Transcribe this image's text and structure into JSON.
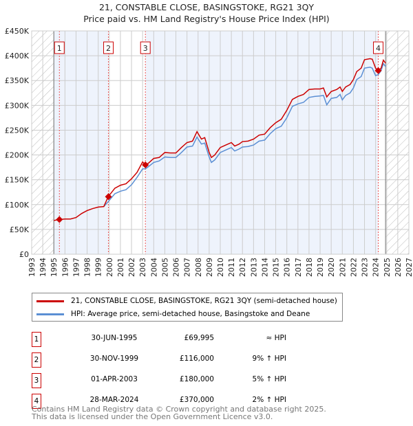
{
  "chart_data": {
    "type": "line",
    "title": "21, CONSTABLE CLOSE, BASINGSTOKE, RG21 3QY",
    "subtitle": "Price paid vs. HM Land Registry's House Price Index (HPI)",
    "xlim": [
      1993,
      2027
    ],
    "ylim": [
      0,
      450000
    ],
    "x_ticks": [
      "1993",
      "1994",
      "1995",
      "1996",
      "1997",
      "1998",
      "1999",
      "2000",
      "2001",
      "2002",
      "2003",
      "2004",
      "2005",
      "2006",
      "2007",
      "2008",
      "2009",
      "2010",
      "2011",
      "2012",
      "2013",
      "2014",
      "2015",
      "2016",
      "2017",
      "2018",
      "2019",
      "2020",
      "2021",
      "2022",
      "2023",
      "2024",
      "2025",
      "2026",
      "2027"
    ],
    "y_ticks": [
      "£0",
      "£50K",
      "£100K",
      "£150K",
      "£200K",
      "£250K",
      "£300K",
      "£350K",
      "£400K",
      "£450K"
    ],
    "grid": true,
    "data_range": [
      1995.0,
      2024.9
    ],
    "series": [
      {
        "name": "21, CONSTABLE CLOSE, BASINGSTOKE, RG21 3QY (semi-detached house)",
        "color": "#cc0000",
        "x": [
          1995.0,
          1995.5,
          1996,
          1996.5,
          1997,
          1997.5,
          1998,
          1998.5,
          1999,
          1999.5,
          1999.9,
          2000.5,
          2001,
          2001.5,
          2002,
          2002.5,
          2003,
          2003.25,
          2003.5,
          2004,
          2004.5,
          2005,
          2005.5,
          2006,
          2006.5,
          2007,
          2007.5,
          2007.9,
          2008.3,
          2008.6,
          2009,
          2009.2,
          2009.5,
          2010,
          2010.5,
          2011,
          2011.3,
          2011.7,
          2012,
          2012.5,
          2013,
          2013.5,
          2014,
          2014.5,
          2015,
          2015.5,
          2016,
          2016.5,
          2017,
          2017.5,
          2018,
          2018.5,
          2019,
          2019.3,
          2019.6,
          2020,
          2020.5,
          2020.8,
          2021,
          2021.3,
          2021.7,
          2022,
          2022.3,
          2022.7,
          2023,
          2023.5,
          2023.7,
          2024,
          2024.24,
          2024.5,
          2024.7,
          2024.9
        ],
        "y": [
          68000,
          70000,
          71000,
          71000,
          74000,
          82000,
          88000,
          92000,
          95000,
          96000,
          116000,
          133000,
          139000,
          142000,
          152000,
          165000,
          186000,
          180000,
          183000,
          193000,
          195000,
          205000,
          204000,
          204000,
          215000,
          225000,
          228000,
          247000,
          232000,
          235000,
          205000,
          195000,
          200000,
          215000,
          220000,
          225000,
          218000,
          222000,
          227000,
          228000,
          232000,
          240000,
          242000,
          255000,
          265000,
          272000,
          290000,
          312000,
          318000,
          322000,
          332000,
          333000,
          333000,
          335000,
          317000,
          328000,
          332000,
          337000,
          328000,
          337000,
          342000,
          352000,
          368000,
          375000,
          392000,
          394000,
          393000,
          375000,
          370000,
          375000,
          391000,
          385000
        ]
      },
      {
        "name": "HPI: Average price, semi-detached house, Basingstoke and Deane",
        "color": "#5b8fd4",
        "x": [
          1999.5,
          1999.9,
          2000.5,
          2001,
          2001.5,
          2002,
          2002.5,
          2003,
          2003.25,
          2003.5,
          2004,
          2004.5,
          2005,
          2005.5,
          2006,
          2006.5,
          2007,
          2007.5,
          2007.9,
          2008.3,
          2008.6,
          2009,
          2009.2,
          2009.5,
          2010,
          2010.5,
          2011,
          2011.3,
          2011.7,
          2012,
          2012.5,
          2013,
          2013.5,
          2014,
          2014.5,
          2015,
          2015.5,
          2016,
          2016.5,
          2017,
          2017.5,
          2018,
          2018.5,
          2019,
          2019.3,
          2019.6,
          2020,
          2020.5,
          2020.8,
          2021,
          2021.3,
          2021.7,
          2022,
          2022.3,
          2022.7,
          2023,
          2023.5,
          2023.7,
          2024,
          2024.24,
          2024.5,
          2024.7,
          2024.9
        ],
        "y": [
          96000,
          106000,
          122000,
          127000,
          130000,
          140000,
          155000,
          172000,
          172000,
          176000,
          185000,
          188000,
          196000,
          195000,
          195000,
          205000,
          216000,
          218000,
          236000,
          222000,
          224000,
          196000,
          185000,
          190000,
          205000,
          210000,
          215000,
          208000,
          212000,
          216000,
          217000,
          220000,
          228000,
          230000,
          243000,
          253000,
          258000,
          275000,
          298000,
          303000,
          306000,
          316000,
          318000,
          319000,
          320000,
          301000,
          314000,
          316000,
          322000,
          311000,
          320000,
          325000,
          335000,
          352000,
          358000,
          375000,
          377000,
          375000,
          360000,
          362000,
          370000,
          384000,
          378000
        ]
      }
    ],
    "sales": [
      {
        "label": "1",
        "x": 1995.5,
        "y": 69995
      },
      {
        "label": "2",
        "x": 1999.92,
        "y": 116000
      },
      {
        "label": "3",
        "x": 2003.25,
        "y": 180000
      },
      {
        "label": "4",
        "x": 2024.24,
        "y": 370000
      }
    ]
  },
  "legend": {
    "property": "21, CONSTABLE CLOSE, BASINGSTOKE, RG21 3QY (semi-detached house)",
    "hpi": "HPI: Average price, semi-detached house, Basingstoke and Deane"
  },
  "transactions": [
    {
      "num": "1",
      "date": "30-JUN-1995",
      "price": "£69,995",
      "hpi": "≈ HPI"
    },
    {
      "num": "2",
      "date": "30-NOV-1999",
      "price": "£116,000",
      "hpi": "9% ↑ HPI"
    },
    {
      "num": "3",
      "date": "01-APR-2003",
      "price": "£180,000",
      "hpi": "5% ↑ HPI"
    },
    {
      "num": "4",
      "date": "28-MAR-2024",
      "price": "£370,000",
      "hpi": "2% ↑ HPI"
    }
  ],
  "footer": {
    "line1": "Contains HM Land Registry data © Crown copyright and database right 2025.",
    "line2": "This data is licensed under the Open Government Licence v3.0."
  }
}
